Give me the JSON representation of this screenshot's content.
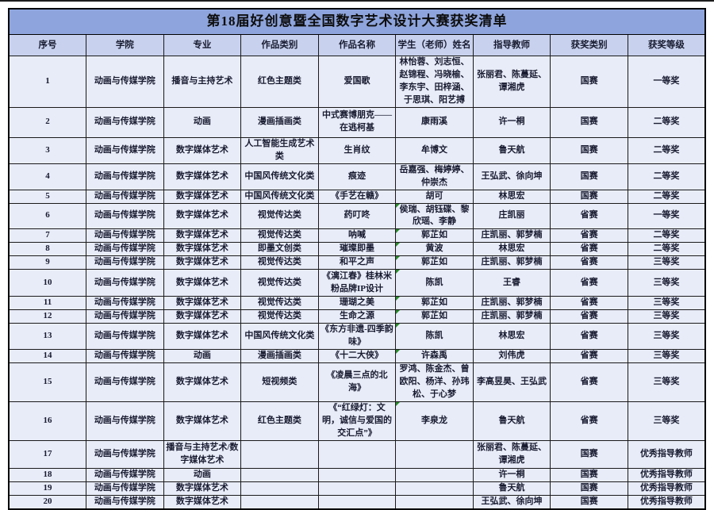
{
  "title": "第18届好创意暨全国数字艺术设计大赛获奖清单",
  "columns": [
    "序号",
    "学院",
    "专业",
    "作品类别",
    "作品名称",
    "学生（老师）姓名",
    "指导教师",
    "获奖类别",
    "获奖等级"
  ],
  "colors": {
    "title_bg": "#8EA4DC",
    "header_bg": "#C8D2EE",
    "cell_bg": "#E8ECF8",
    "grid_border": "#1a1a1a",
    "error_marker_green": "#2a8a2a"
  },
  "rows": [
    {
      "no": "1",
      "college": "动画与传媒学院",
      "major": "播音与主持艺术",
      "category": "红色主题类",
      "work": "爱国歌",
      "students": "林怡蓉、刘志恒、赵锦程、冯晓榆、李东宇、田梓涵、于思琪、阳艺搏",
      "advisors": "张丽君、陈蔓延、谭湘虎",
      "award_type": "国赛",
      "award_level": "一等奖",
      "has_flag": false
    },
    {
      "no": "2",
      "college": "动画与传媒学院",
      "major": "动画",
      "category": "漫画插画类",
      "work": "中式赛博朋克——在逃柯基",
      "students": "康雨溪",
      "advisors": "许一桐",
      "award_type": "国赛",
      "award_level": "二等奖",
      "has_flag": false
    },
    {
      "no": "3",
      "college": "动画与传媒学院",
      "major": "数字媒体艺术",
      "category": "人工智能生成艺术类",
      "work": "生肖纹",
      "students": "牟博文",
      "advisors": "鲁天航",
      "award_type": "国赛",
      "award_level": "二等奖",
      "has_flag": false
    },
    {
      "no": "4",
      "college": "动画与传媒学院",
      "major": "数字媒体艺术",
      "category": "中国风传统文化类",
      "work": "痕迹",
      "students": "岳嘉强、梅婷婷、仲崇杰",
      "advisors": "王弘武、徐向坤",
      "award_type": "国赛",
      "award_level": "二等奖",
      "has_flag": false
    },
    {
      "no": "5",
      "college": "动画与传媒学院",
      "major": "数字媒体艺术",
      "category": "中国风传统文化类",
      "work": "《手艺在赣》",
      "students": "胡可",
      "advisors": "林思宏",
      "award_type": "国赛",
      "award_level": "二等奖",
      "has_flag": false
    },
    {
      "no": "6",
      "college": "动画与传媒学院",
      "major": "数字媒体艺术",
      "category": "视觉传达类",
      "work": "药叮咚",
      "students": "侯瑞、胡钰碟、黎欣瑶、李静",
      "advisors": "庄凯丽",
      "award_type": "省赛",
      "award_level": "一等奖",
      "has_flag": true
    },
    {
      "no": "7",
      "college": "动画与传媒学院",
      "major": "数字媒体艺术",
      "category": "视觉传达类",
      "work": "呐喊",
      "students": "郭芷如",
      "advisors": "庄凯丽、郭梦楠",
      "award_type": "省赛",
      "award_level": "二等奖",
      "has_flag": true
    },
    {
      "no": "8",
      "college": "动画与传媒学院",
      "major": "数字媒体艺术",
      "category": "即墨文创类",
      "work": "璀璨即墨",
      "students": "黄波",
      "advisors": "林思宏",
      "award_type": "省赛",
      "award_level": "二等奖",
      "has_flag": true
    },
    {
      "no": "9",
      "college": "动画与传媒学院",
      "major": "数字媒体艺术",
      "category": "视觉传达类",
      "work": "和平之声",
      "students": "郭芷如",
      "advisors": "庄凯丽、郭梦楠",
      "award_type": "省赛",
      "award_level": "三等奖",
      "has_flag": true
    },
    {
      "no": "10",
      "college": "动画与传媒学院",
      "major": "数字媒体艺术",
      "category": "视觉传达类",
      "work": "《漓江春》桂林米粉品牌IP设计",
      "students": "陈凯",
      "advisors": "王睿",
      "award_type": "省赛",
      "award_level": "三等奖",
      "has_flag": true
    },
    {
      "no": "11",
      "college": "动画与传媒学院",
      "major": "数字媒体艺术",
      "category": "视觉传达类",
      "work": "珊瑚之美",
      "students": "郭芷如",
      "advisors": "庄凯丽、郭梦楠",
      "award_type": "省赛",
      "award_level": "三等奖",
      "has_flag": true
    },
    {
      "no": "12",
      "college": "动画与传媒学院",
      "major": "数字媒体艺术",
      "category": "视觉传达类",
      "work": "生命之源",
      "students": "郭芷如",
      "advisors": "庄凯丽、郭梦楠",
      "award_type": "省赛",
      "award_level": "三等奖",
      "has_flag": true
    },
    {
      "no": "13",
      "college": "动画与传媒学院",
      "major": "数字媒体艺术",
      "category": "中国风传统文化类",
      "work": "《东方非遗-四季韵味》",
      "students": "陈凯",
      "advisors": "林思宏",
      "award_type": "省赛",
      "award_level": "三等奖",
      "has_flag": true
    },
    {
      "no": "14",
      "college": "动画与传媒学院",
      "major": "动画",
      "category": "漫画插画类",
      "work": "《十二大侠》",
      "students": "许森禹",
      "advisors": "刘伟虎",
      "award_type": "省赛",
      "award_level": "三等奖",
      "has_flag": true
    },
    {
      "no": "15",
      "college": "动画与传媒学院",
      "major": "数字媒体艺术",
      "category": "短视频类",
      "work": "《凌晨三点的北海》",
      "students": "罗鸿、陈金杰、曾欧阳、杨洋、孙玮松、于心梦",
      "advisors": "李高昱昊、王弘武",
      "award_type": "省赛",
      "award_level": "三等奖",
      "has_flag": false
    },
    {
      "no": "16",
      "college": "动画与传媒学院",
      "major": "数字媒体艺术",
      "category": "红色主题类",
      "work": "《“红绿灯：文明，诚信与爱国的交汇点”》",
      "students": "李泉龙",
      "advisors": "鲁天航",
      "award_type": "省赛",
      "award_level": "三等奖",
      "has_flag": true
    },
    {
      "no": "17",
      "college": "动画与传媒学院",
      "major": "播音与主持艺术/数字媒体艺术",
      "category": "",
      "work": "",
      "students": "",
      "advisors": "张丽君、陈蔓延、谭湘虎",
      "award_type": "国赛",
      "award_level": "优秀指导教师",
      "has_flag": false
    },
    {
      "no": "18",
      "college": "动画与传媒学院",
      "major": "动画",
      "category": "",
      "work": "",
      "students": "",
      "advisors": "许一桐",
      "award_type": "国赛",
      "award_level": "优秀指导教师",
      "has_flag": false
    },
    {
      "no": "19",
      "college": "动画与传媒学院",
      "major": "数字媒体艺术",
      "category": "",
      "work": "",
      "students": "",
      "advisors": "鲁天航",
      "award_type": "国赛",
      "award_level": "优秀指导教师",
      "has_flag": false
    },
    {
      "no": "20",
      "college": "动画与传媒学院",
      "major": "数字媒体艺术",
      "category": "",
      "work": "",
      "students": "",
      "advisors": "王弘武、徐向坤",
      "award_type": "国赛",
      "award_level": "优秀指导教师",
      "has_flag": false
    }
  ]
}
